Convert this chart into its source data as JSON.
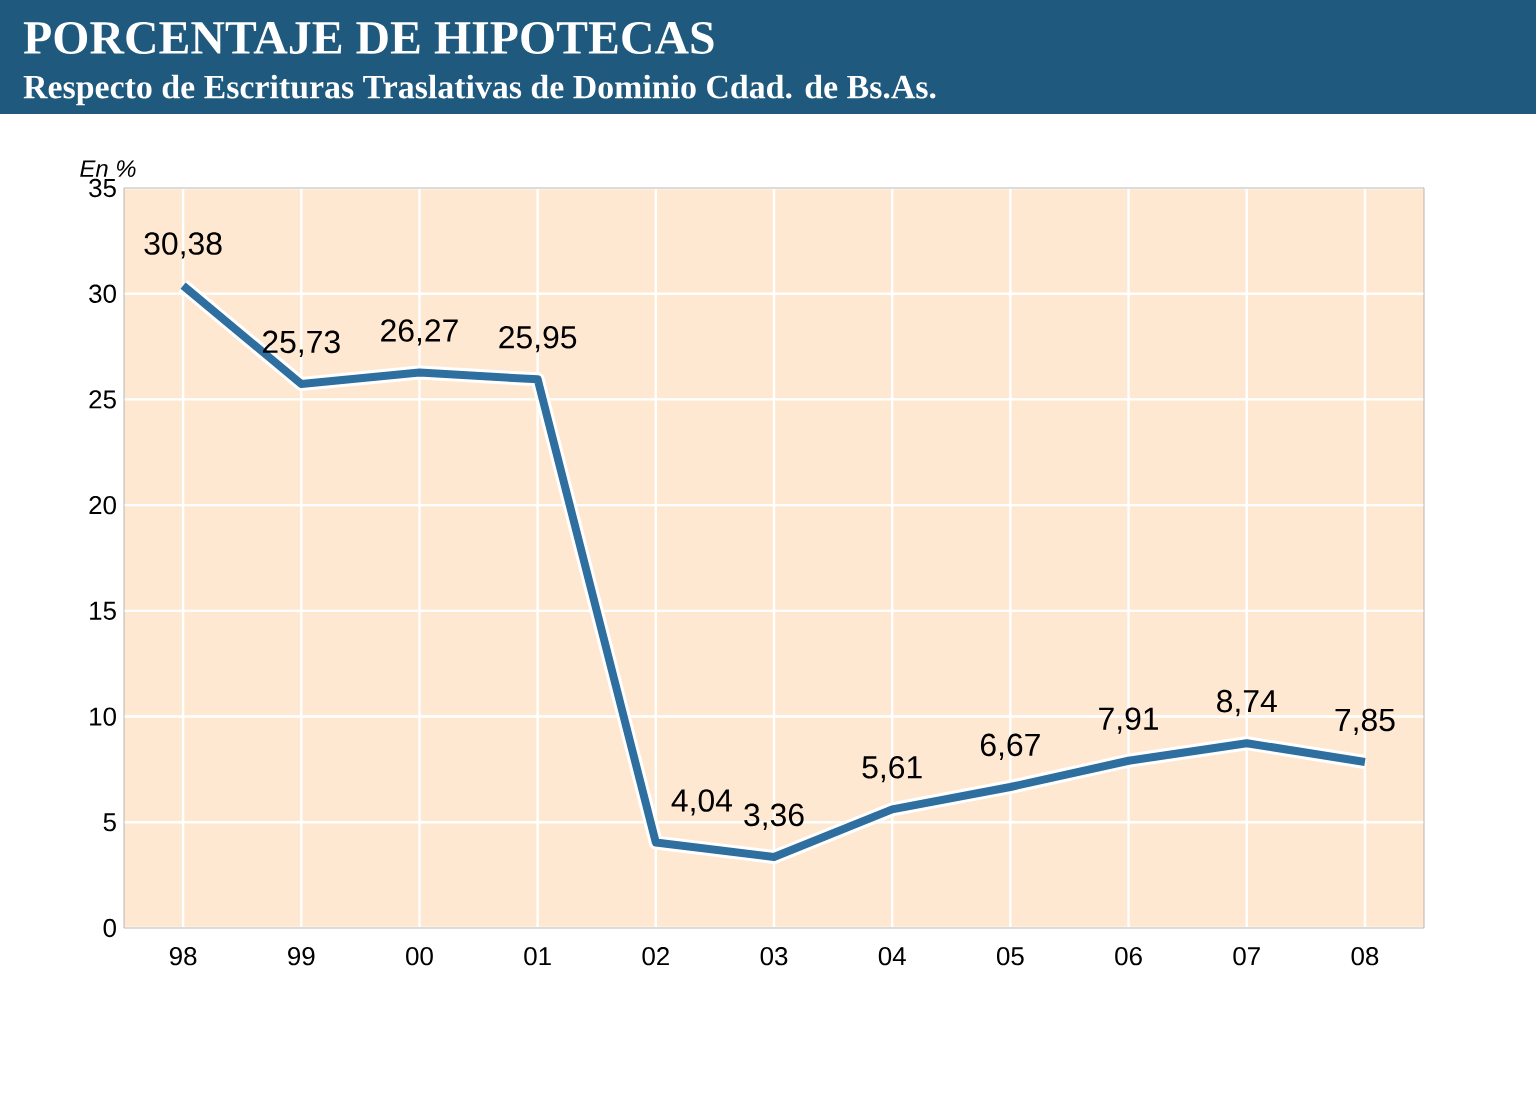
{
  "chart_data": {
    "type": "line",
    "title": "PORCENTAJE DE HIPOTECAS",
    "subtitle": "Respecto de Escrituras Traslativas de Dominio Cdad. de Bs.As.",
    "ylabel": "En %",
    "categories": [
      "98",
      "99",
      "00",
      "01",
      "02",
      "03",
      "04",
      "05",
      "06",
      "07",
      "08"
    ],
    "values": [
      30.38,
      25.73,
      26.27,
      25.95,
      4.04,
      3.36,
      5.61,
      6.67,
      7.91,
      8.74,
      7.85
    ],
    "value_labels": [
      "30,38",
      "25,73",
      "26,27",
      "25,95",
      "4,04",
      "3,36",
      "5,61",
      "6,67",
      "7,91",
      "8,74",
      "7,85"
    ],
    "color": "#2f6f9f",
    "ylim": [
      0,
      35
    ],
    "yticks": [
      0,
      5,
      10,
      15,
      20,
      25,
      30,
      35
    ],
    "grid": true,
    "marker": "none",
    "line_style": "solid"
  }
}
